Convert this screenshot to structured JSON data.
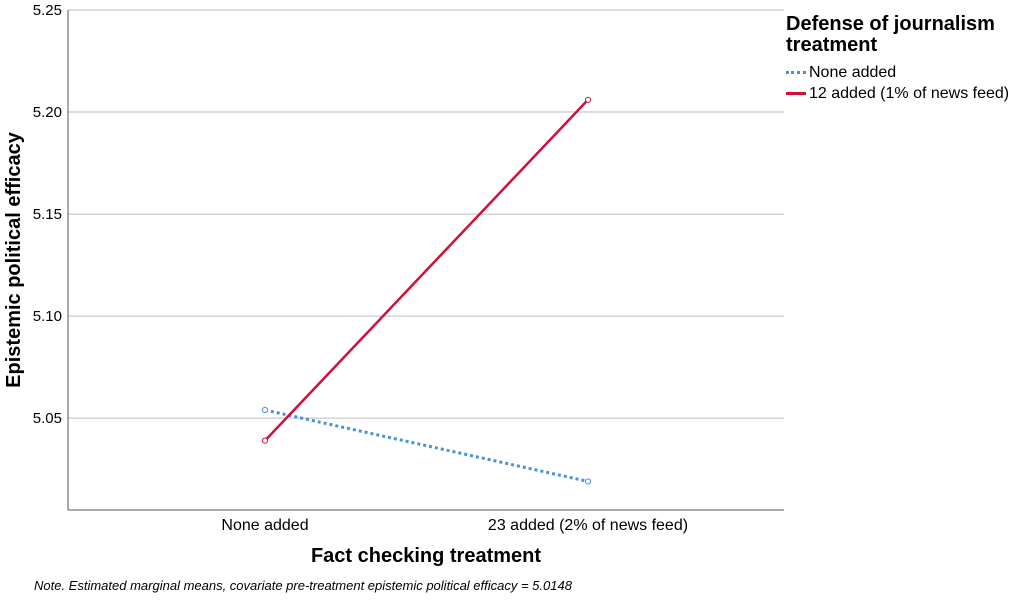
{
  "chart_data": {
    "type": "line",
    "xlabel": "Fact checking treatment",
    "ylabel": "Epistemic political efficacy",
    "categories": [
      "None added",
      "23 added (2% of news feed)"
    ],
    "ylim": [
      5.005,
      5.25
    ],
    "yticks": [
      "5.05",
      "5.10",
      "5.15",
      "5.20",
      "5.25"
    ],
    "grid": true,
    "legend_position": "right",
    "legend_title": "Defense of journalism treatment",
    "series": [
      {
        "name": "None added",
        "values": [
          5.054,
          5.019
        ],
        "color": "#4a90e2",
        "style": "dotted"
      },
      {
        "name": "12 added (1% of news feed)",
        "values": [
          5.039,
          5.206
        ],
        "color": "#d0103a",
        "style": "solid"
      }
    ],
    "note": "Note. Estimated marginal means, covariate pre-treatment epistemic political efficacy = 5.0148"
  }
}
